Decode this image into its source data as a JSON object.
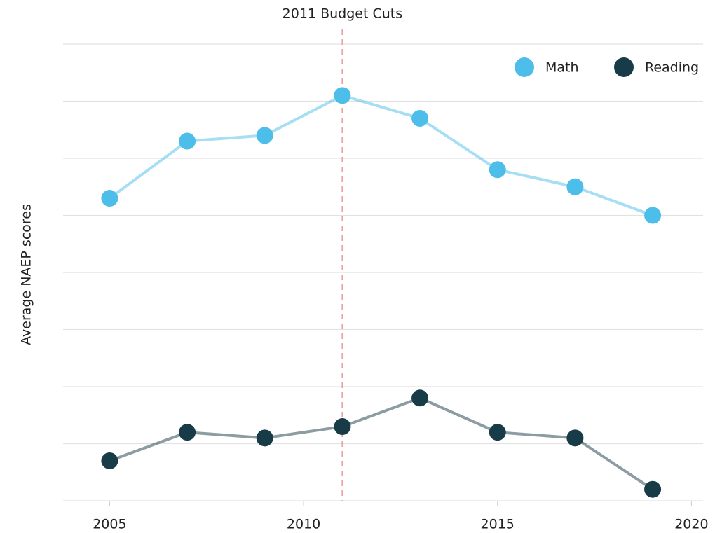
{
  "chart_data": {
    "type": "line",
    "y_label": "Average NAEP scores",
    "annotation": {
      "text": "2011 Budget Cuts",
      "x": 2011,
      "color": "#e8663a"
    },
    "x": [
      2005,
      2007,
      2009,
      2011,
      2013,
      2015,
      2017,
      2019
    ],
    "series": [
      {
        "name": "Math",
        "color": "#4dbde9",
        "values": [
          5.3,
          6.3,
          6.4,
          7.1,
          6.7,
          5.8,
          5.5,
          5.0
        ]
      },
      {
        "name": "Reading",
        "color": "#173b47",
        "values": [
          0.7,
          1.2,
          1.1,
          1.3,
          1.8,
          1.2,
          1.1,
          0.2
        ]
      }
    ],
    "xlim": [
      2003.8,
      2020.3
    ],
    "xticks": [
      2005,
      2010,
      2015,
      2020
    ],
    "ylim": [
      0,
      8
    ],
    "yticks": [
      0,
      1,
      2,
      3,
      4,
      5,
      6,
      7,
      8
    ],
    "grid": true,
    "legend": "upper right"
  }
}
